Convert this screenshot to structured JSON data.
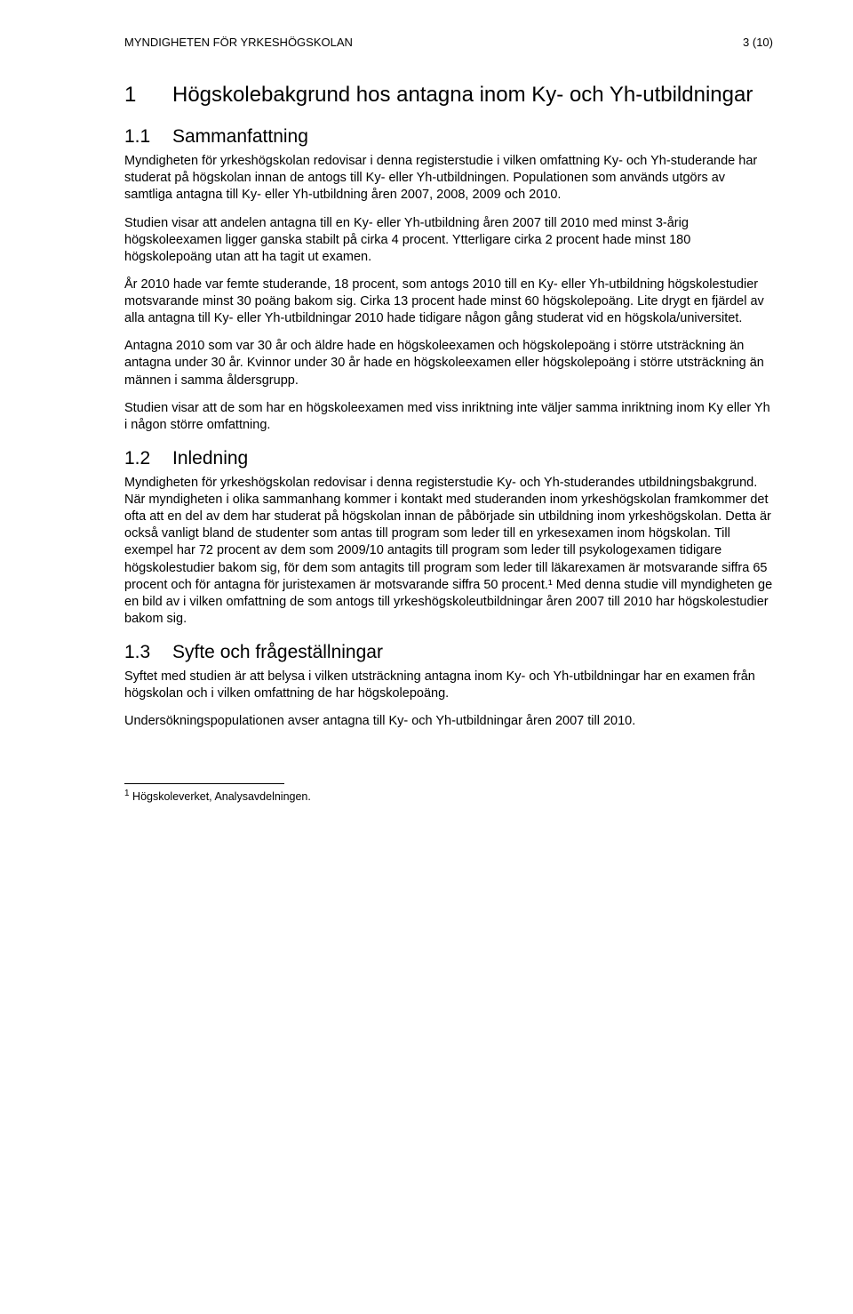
{
  "header": {
    "org": "MYNDIGHETEN FÖR YRKESHÖGSKOLAN",
    "page_indicator": "3 (10)"
  },
  "title": {
    "number": "1",
    "text": "Högskolebakgrund hos antagna inom Ky- och Yh-utbildningar"
  },
  "sections": {
    "s1": {
      "number": "1.1",
      "heading": "Sammanfattning",
      "paras": [
        "Myndigheten för yrkeshögskolan redovisar i denna registerstudie i vilken omfattning Ky- och Yh-studerande har studerat på högskolan innan de antogs till Ky- eller Yh-utbildningen. Populationen som används utgörs av samtliga antagna till Ky- eller Yh-utbildning åren 2007, 2008, 2009 och 2010.",
        "Studien visar att andelen antagna till en Ky- eller Yh-utbildning åren 2007 till 2010 med minst 3-årig högskoleexamen ligger ganska stabilt på cirka 4 procent. Ytterligare cirka 2 procent hade minst 180 högskolepoäng utan att ha tagit ut examen.",
        "År 2010 hade var femte studerande, 18 procent, som antogs 2010 till en Ky- eller Yh-utbildning högskolestudier motsvarande minst 30 poäng bakom sig. Cirka 13 procent hade minst 60 högskolepoäng. Lite drygt en fjärdel av alla antagna till Ky- eller Yh-utbildningar 2010 hade tidigare någon gång studerat vid en högskola/universitet.",
        "Antagna 2010 som var 30 år och äldre hade en högskoleexamen och högskolepoäng i större utsträckning än antagna under 30 år. Kvinnor under 30 år hade en högskoleexamen eller högskolepoäng i större utsträckning än männen i samma åldersgrupp.",
        "Studien visar att de som har en högskoleexamen med viss inriktning inte väljer samma inriktning inom Ky eller Yh i någon större omfattning."
      ]
    },
    "s2": {
      "number": "1.2",
      "heading": "Inledning",
      "paras": [
        "Myndigheten för yrkeshögskolan redovisar i denna registerstudie Ky- och Yh-studerandes utbildningsbakgrund. När myndigheten i olika sammanhang kommer i kontakt med studeranden inom yrkeshögskolan framkommer det ofta att en del av dem har studerat på högskolan innan de påbörjade sin utbildning inom yrkeshögskolan. Detta är också vanligt bland de studenter som antas till program som leder till en yrkesexamen inom högskolan. Till exempel har 72 procent av dem som 2009/10 antagits till program som leder till psykologexamen tidigare högskolestudier bakom sig, för dem som antagits till program som leder till läkarexamen är motsvarande siffra 65 procent och för antagna för juristexamen är motsvarande siffra 50 procent.¹ Med denna studie vill myndigheten ge en bild av i vilken omfattning de som antogs till yrkeshögskoleutbildningar åren 2007 till 2010 har högskolestudier bakom sig."
      ]
    },
    "s3": {
      "number": "1.3",
      "heading": "Syfte och frågeställningar",
      "paras": [
        "Syftet med studien är att belysa i vilken utsträckning antagna inom Ky- och Yh-utbildningar har en examen från högskolan och i vilken omfattning de har högskolepoäng.",
        "Undersökningspopulationen avser antagna till Ky- och Yh-utbildningar åren 2007 till 2010."
      ]
    }
  },
  "footnote": {
    "marker": "1",
    "text": " Högskoleverket, Analysavdelningen."
  }
}
